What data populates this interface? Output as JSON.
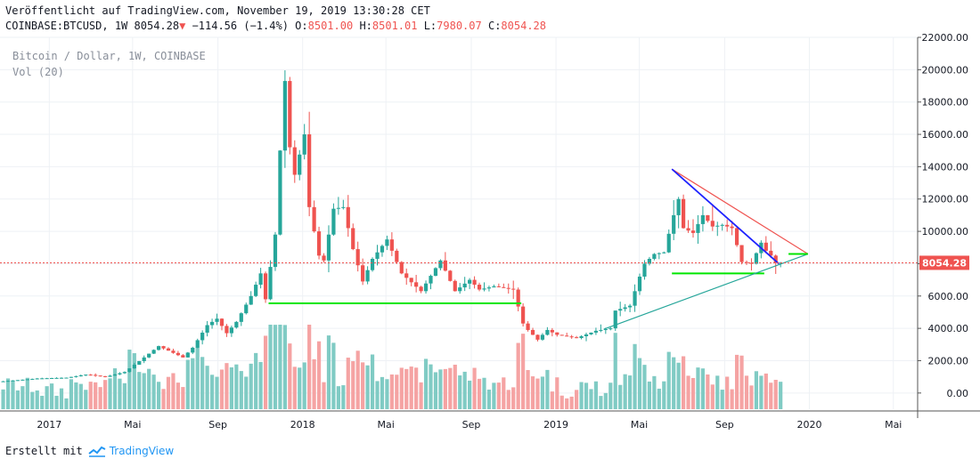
{
  "header": {
    "published": "Veröffentlicht auf TradingView.com, November 19, 2019 13:30:28 CET",
    "symbol": "COINBASE:BTCUSD, 1W",
    "last": "8054.28",
    "change": "−114.56 (−1.4%)",
    "o_label": "O:",
    "o_value": "8501.00",
    "h_label": "H:",
    "h_value": "8501.01",
    "l_label": "L:",
    "l_value": "7980.07",
    "c_label": "C:",
    "c_value": "8054.28"
  },
  "legend": {
    "series_title": "Bitcoin / Dollar, 1W, COINBASE",
    "volume_title": "Vol (20)"
  },
  "price_tag": "8054.28",
  "footer": {
    "created_with": "Erstellt mit",
    "brand": "TradingView"
  },
  "colors": {
    "up": "#26a69a",
    "down": "#ef5350",
    "vol_up": "#80cbc4",
    "vol_down": "#f5a3a3",
    "green_line": "#00e600",
    "blue_line": "#1e22ff",
    "grid": "#eef1f5"
  },
  "chart_data": {
    "type": "candlestick",
    "ylim": [
      -1000,
      22000
    ],
    "y_ticks": [
      22000,
      20000,
      18000,
      16000,
      14000,
      12000,
      10000,
      8000,
      6000,
      4000,
      2000,
      0
    ],
    "y_tick_labels": [
      "22000.00",
      "20000.00",
      "18000.00",
      "16000.00",
      "14000.00",
      "12000.00",
      "10000.00",
      "8000.00",
      "6000.00",
      "4000.00",
      "2000.00",
      "0.00"
    ],
    "x_ticks": [
      {
        "label": "2017",
        "date": "2017-01-01"
      },
      {
        "label": "Mai",
        "date": "2017-05-01"
      },
      {
        "label": "Sep",
        "date": "2017-09-01"
      },
      {
        "label": "2018",
        "date": "2018-01-01"
      },
      {
        "label": "Mai",
        "date": "2018-05-01"
      },
      {
        "label": "Sep",
        "date": "2018-09-01"
      },
      {
        "label": "2019",
        "date": "2019-01-01"
      },
      {
        "label": "Mai",
        "date": "2019-05-01"
      },
      {
        "label": "Sep",
        "date": "2019-09-01"
      },
      {
        "label": "2020",
        "date": "2020-01-01"
      },
      {
        "label": "Mai",
        "date": "2020-05-01"
      }
    ],
    "x_range": [
      "2016-10-22",
      "2020-06-05"
    ],
    "anchors": [
      [
        "2016-10-24",
        700
      ],
      [
        "2016-12-19",
        900
      ],
      [
        "2017-01-30",
        950
      ],
      [
        "2017-03-01",
        1150
      ],
      [
        "2017-03-27",
        1000
      ],
      [
        "2017-04-24",
        1300
      ],
      [
        "2017-05-22",
        2200
      ],
      [
        "2017-06-12",
        2900
      ],
      [
        "2017-07-17",
        2200
      ],
      [
        "2017-07-31",
        2800
      ],
      [
        "2017-08-21",
        4200
      ],
      [
        "2017-09-04",
        4600
      ],
      [
        "2017-09-18",
        3700
      ],
      [
        "2017-10-02",
        4400
      ],
      [
        "2017-10-23",
        6000
      ],
      [
        "2017-11-06",
        7400
      ],
      [
        "2017-11-13",
        5800
      ],
      [
        "2017-11-27",
        9800
      ],
      [
        "2017-12-04",
        15000
      ],
      [
        "2017-12-11",
        19300
      ],
      [
        "2017-12-18",
        15200
      ],
      [
        "2017-12-25",
        13500
      ],
      [
        "2018-01-08",
        16000
      ],
      [
        "2018-01-15",
        11500
      ],
      [
        "2018-01-29",
        8500
      ],
      [
        "2018-02-05",
        8200
      ],
      [
        "2018-02-19",
        11400
      ],
      [
        "2018-03-05",
        11500
      ],
      [
        "2018-03-19",
        8900
      ],
      [
        "2018-04-02",
        6900
      ],
      [
        "2018-04-16",
        8300
      ],
      [
        "2018-05-07",
        9500
      ],
      [
        "2018-05-28",
        7400
      ],
      [
        "2018-06-25",
        6300
      ],
      [
        "2018-07-23",
        8200
      ],
      [
        "2018-08-13",
        6300
      ],
      [
        "2018-09-03",
        7000
      ],
      [
        "2018-09-17",
        6400
      ],
      [
        "2018-10-08",
        6600
      ],
      [
        "2018-11-05",
        6400
      ],
      [
        "2018-11-19",
        4300
      ],
      [
        "2018-11-26",
        3900
      ],
      [
        "2018-12-10",
        3300
      ],
      [
        "2018-12-24",
        3900
      ],
      [
        "2019-01-07",
        3600
      ],
      [
        "2019-02-04",
        3400
      ],
      [
        "2019-03-04",
        3850
      ],
      [
        "2019-03-25",
        4000
      ],
      [
        "2019-04-01",
        5100
      ],
      [
        "2019-04-22",
        5400
      ],
      [
        "2019-05-06",
        7200
      ],
      [
        "2019-05-13",
        8000
      ],
      [
        "2019-05-27",
        8600
      ],
      [
        "2019-06-10",
        8700
      ],
      [
        "2019-06-24",
        11000
      ],
      [
        "2019-07-01",
        12000
      ],
      [
        "2019-07-08",
        10200
      ],
      [
        "2019-07-22",
        9900
      ],
      [
        "2019-08-05",
        11000
      ],
      [
        "2019-08-19",
        10300
      ],
      [
        "2019-09-02",
        10400
      ],
      [
        "2019-09-16",
        10200
      ],
      [
        "2019-09-30",
        8100
      ],
      [
        "2019-10-14",
        8000
      ],
      [
        "2019-10-28",
        9300
      ],
      [
        "2019-11-04",
        8800
      ],
      [
        "2019-11-11",
        8500
      ],
      [
        "2019-11-18",
        8054
      ]
    ],
    "trendlines": [
      {
        "name": "support-2018",
        "color": "#00e600",
        "from": [
          "2017-11-13",
          5550
        ],
        "to": [
          "2018-11-12",
          5550
        ]
      },
      {
        "name": "support-2019",
        "color": "#00e600",
        "from": [
          "2019-06-17",
          7400
        ],
        "to": [
          "2019-10-28",
          7400
        ]
      },
      {
        "name": "upper-red",
        "color": "#ef5350",
        "from": [
          "2019-06-17",
          13850
        ],
        "to": [
          "2019-12-30",
          8600
        ]
      },
      {
        "name": "lower-teal",
        "color": "#26a69a",
        "from": [
          "2019-03-11",
          3950
        ],
        "to": [
          "2019-12-30",
          8600
        ]
      },
      {
        "name": "blue-down",
        "color": "#1e22ff",
        "from": [
          "2019-06-17",
          13850
        ],
        "to": [
          "2019-11-18",
          8000
        ]
      },
      {
        "name": "green-arrow",
        "color": "#00e600",
        "from": [
          "2019-12-02",
          8600
        ],
        "to": [
          "2019-12-30",
          8600
        ]
      }
    ]
  }
}
